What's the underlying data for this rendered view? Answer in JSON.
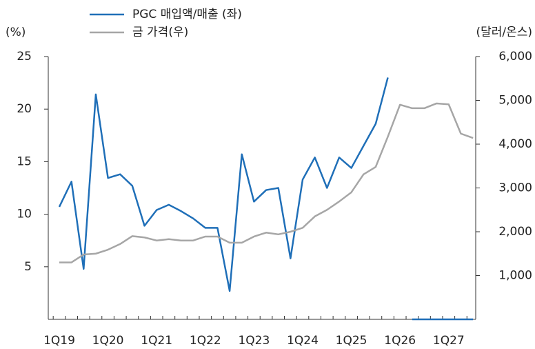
{
  "chart_data": {
    "type": "line",
    "y_label": "(%)",
    "y2_label": "(달러/온스)",
    "categories": [
      "1Q19",
      null,
      null,
      null,
      "1Q20",
      null,
      null,
      null,
      "1Q21",
      null,
      null,
      null,
      "1Q22",
      null,
      null,
      null,
      "1Q23",
      null,
      null,
      null,
      "1Q24",
      null,
      null,
      null,
      "1Q25",
      null,
      null,
      null,
      "1Q26",
      null,
      null,
      null,
      "1Q27",
      null,
      null
    ],
    "series": [
      {
        "name": "PGC 매입액/매출 (좌)",
        "color": "#1f6fb8",
        "axis": "y",
        "values": [
          10.7,
          13.1,
          4.8,
          21.4,
          13.45,
          13.8,
          12.7,
          8.9,
          10.4,
          10.9,
          10.3,
          9.6,
          8.7,
          8.7,
          2.7,
          15.7,
          11.2,
          12.3,
          12.5,
          5.8,
          13.3,
          15.4,
          12.5,
          15.4,
          14.4,
          16.5,
          18.6,
          23.0,
          null,
          0,
          0,
          0,
          0,
          0,
          0
        ]
      },
      {
        "name": "금 가격(우)",
        "color": "#a6a6a6",
        "axis": "y2",
        "values": [
          1300,
          1300,
          1480,
          1500,
          1590,
          1720,
          1900,
          1870,
          1800,
          1830,
          1800,
          1800,
          1890,
          1890,
          1750,
          1750,
          1890,
          1980,
          1940,
          2000,
          2090,
          2350,
          2500,
          2690,
          2900,
          3310,
          3480,
          4170,
          4900,
          4820,
          4820,
          4930,
          4910,
          4240,
          4140
        ]
      }
    ],
    "ylim": [
      0,
      25
    ],
    "yticks": [
      5,
      10,
      15,
      20,
      25
    ],
    "y2lim": [
      0,
      6000
    ],
    "y2ticks": [
      {
        "value": 1000,
        "label": "1,000"
      },
      {
        "value": 2000,
        "label": "2,000"
      },
      {
        "value": 3000,
        "label": "3,000"
      },
      {
        "value": 4000,
        "label": "4,000"
      },
      {
        "value": 5000,
        "label": "5,000"
      },
      {
        "value": 6000,
        "label": "6,000"
      }
    ]
  }
}
